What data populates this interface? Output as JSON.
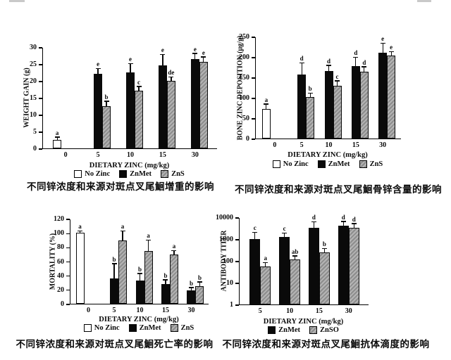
{
  "colors": {
    "bar_black": "#0a0a0a",
    "bar_hatch_base": "#b4b4b4",
    "bar_hatch_line": "#8d8d8d",
    "bar_white": "#ffffff",
    "axis": "#000000",
    "caption_text": "#0a0a0a"
  },
  "chart_data": [
    {
      "type": "bar",
      "caption": "不同锌浓度和来源对斑点叉尾鮰增重的影响",
      "ylabel": "WEIGHT GAIN (g)",
      "xlabel": "DIETARY ZINC (mg/kg)",
      "scale": "linear",
      "ymin": 0,
      "ymax": 30,
      "yticks": [
        0,
        5,
        10,
        15,
        20,
        25,
        30
      ],
      "categories": [
        "0",
        "5",
        "10",
        "15",
        "30"
      ],
      "legend_position": "bottom",
      "series": [
        {
          "name": "No Zinc",
          "style": "white",
          "values": [
            2.5,
            null,
            null,
            null,
            null
          ],
          "errors": [
            0.7,
            null,
            null,
            null,
            null
          ],
          "labels": [
            "a",
            null,
            null,
            null,
            null
          ]
        },
        {
          "name": "ZnMet",
          "style": "black",
          "values": [
            null,
            22,
            22.5,
            24.5,
            26.5
          ],
          "errors": [
            null,
            1.5,
            2.5,
            3.2,
            1.5
          ],
          "labels": [
            null,
            "e",
            "e",
            "e",
            "e"
          ]
        },
        {
          "name": "ZnS",
          "style": "hatch",
          "values": [
            null,
            12.5,
            17,
            20,
            25.7
          ],
          "errors": [
            null,
            1.3,
            1.2,
            1.0,
            1.2
          ],
          "labels": [
            null,
            "b",
            "c",
            "de",
            "e"
          ]
        }
      ]
    },
    {
      "type": "bar",
      "caption": "不同锌浓度和来源对斑点叉尾鮰骨锌含量的影响",
      "ylabel": "BONE ZINC DEPOSITION (µg/g)",
      "xlabel": "DIETARY ZINC (mg/kg)",
      "scale": "linear",
      "ymin": 0,
      "ymax": 250,
      "yticks": [
        0,
        50,
        100,
        150,
        200,
        250
      ],
      "categories": [
        "0",
        "5",
        "10",
        "15",
        "30"
      ],
      "legend_position": "bottom",
      "series": [
        {
          "name": "No Zinc",
          "style": "white",
          "values": [
            73,
            null,
            null,
            null,
            null
          ],
          "errors": [
            10,
            null,
            null,
            null,
            null
          ],
          "labels": [
            "a",
            null,
            null,
            null,
            null
          ]
        },
        {
          "name": "ZnMet",
          "style": "black",
          "values": [
            null,
            157,
            166,
            177,
            211
          ],
          "errors": [
            null,
            27,
            12,
            21,
            21
          ],
          "labels": [
            null,
            "d",
            "d",
            "d",
            "e"
          ]
        },
        {
          "name": "ZnS",
          "style": "hatch",
          "values": [
            null,
            102,
            129,
            163,
            204
          ],
          "errors": [
            null,
            8,
            11,
            12,
            8
          ],
          "labels": [
            null,
            "b",
            "c",
            "d",
            "e"
          ]
        }
      ]
    },
    {
      "type": "bar",
      "caption": "不同锌浓度和来源对斑点叉尾鮰死亡率的影响",
      "ylabel": "MORTALITY (%)",
      "xlabel": "DIETARY ZINC (mg/kg)",
      "scale": "linear",
      "ymin": 0,
      "ymax": 120,
      "yticks": [
        0,
        20,
        40,
        60,
        80,
        100,
        120
      ],
      "categories": [
        "0",
        "5",
        "10",
        "15",
        "30"
      ],
      "legend_position": "bottom",
      "series": [
        {
          "name": "No Zinc",
          "style": "white",
          "values": [
            100,
            null,
            null,
            null,
            null
          ],
          "errors": [
            2,
            null,
            null,
            null,
            null
          ],
          "labels": [
            "a",
            null,
            null,
            null,
            null
          ]
        },
        {
          "name": "ZnMet",
          "style": "black",
          "values": [
            null,
            36,
            33,
            28,
            19
          ],
          "errors": [
            null,
            20,
            9,
            5,
            3
          ],
          "labels": [
            null,
            "b",
            "b",
            "b",
            "b"
          ]
        },
        {
          "name": "ZnS",
          "style": "hatch",
          "values": [
            null,
            89,
            74,
            69,
            25
          ],
          "errors": [
            null,
            13,
            15,
            5,
            5
          ],
          "labels": [
            null,
            "a",
            "a",
            "a",
            "b"
          ]
        }
      ]
    },
    {
      "type": "bar",
      "caption": "不同锌浓度和来源对斑点叉尾鮰抗体滴度的影响",
      "ylabel": "ANTIBODY TITER",
      "xlabel": "DIETARY ZINC (mg/kg)",
      "scale": "log",
      "ymin": 1,
      "ymax": 10000,
      "yticks": [
        1,
        10,
        100,
        1000,
        10000
      ],
      "categories": [
        "5",
        "10",
        "15",
        "30"
      ],
      "legend_position": "bottom",
      "series": [
        {
          "name": "ZnMet",
          "style": "black",
          "values": [
            1000,
            1250,
            3300,
            4000
          ],
          "errors": [
            900,
            550,
            2600,
            2000
          ],
          "labels": [
            "c",
            "c",
            "d",
            "d"
          ]
        },
        {
          "name": "ZnSO",
          "style": "hatch",
          "values": [
            55,
            115,
            250,
            3300
          ],
          "errors": [
            25,
            45,
            100,
            1500
          ],
          "labels": [
            "a",
            "ab",
            "b",
            "d"
          ]
        }
      ]
    }
  ]
}
